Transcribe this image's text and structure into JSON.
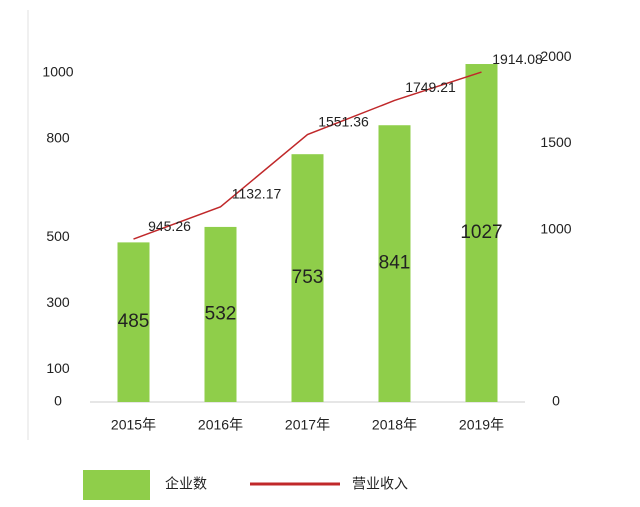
{
  "chart_data": {
    "type": "bar-line",
    "categories": [
      "2015年",
      "2016年",
      "2017年",
      "2018年",
      "2019年"
    ],
    "series": [
      {
        "name": "企业数",
        "type": "bar",
        "color": "#8fce4a",
        "values": [
          485,
          532,
          753,
          841,
          1027
        ]
      },
      {
        "name": "营业收入",
        "type": "line",
        "axis": "y2",
        "color": "#c0282a",
        "values": [
          945.26,
          1132.17,
          1551.36,
          1749.21,
          1914.08
        ]
      }
    ],
    "ylim": [
      0,
      1100
    ],
    "yticks": [
      0,
      100,
      300,
      500,
      800,
      1000
    ],
    "y2lim": [
      0,
      2100
    ],
    "y2ticks": [
      0,
      1000,
      1500,
      2000
    ]
  }
}
